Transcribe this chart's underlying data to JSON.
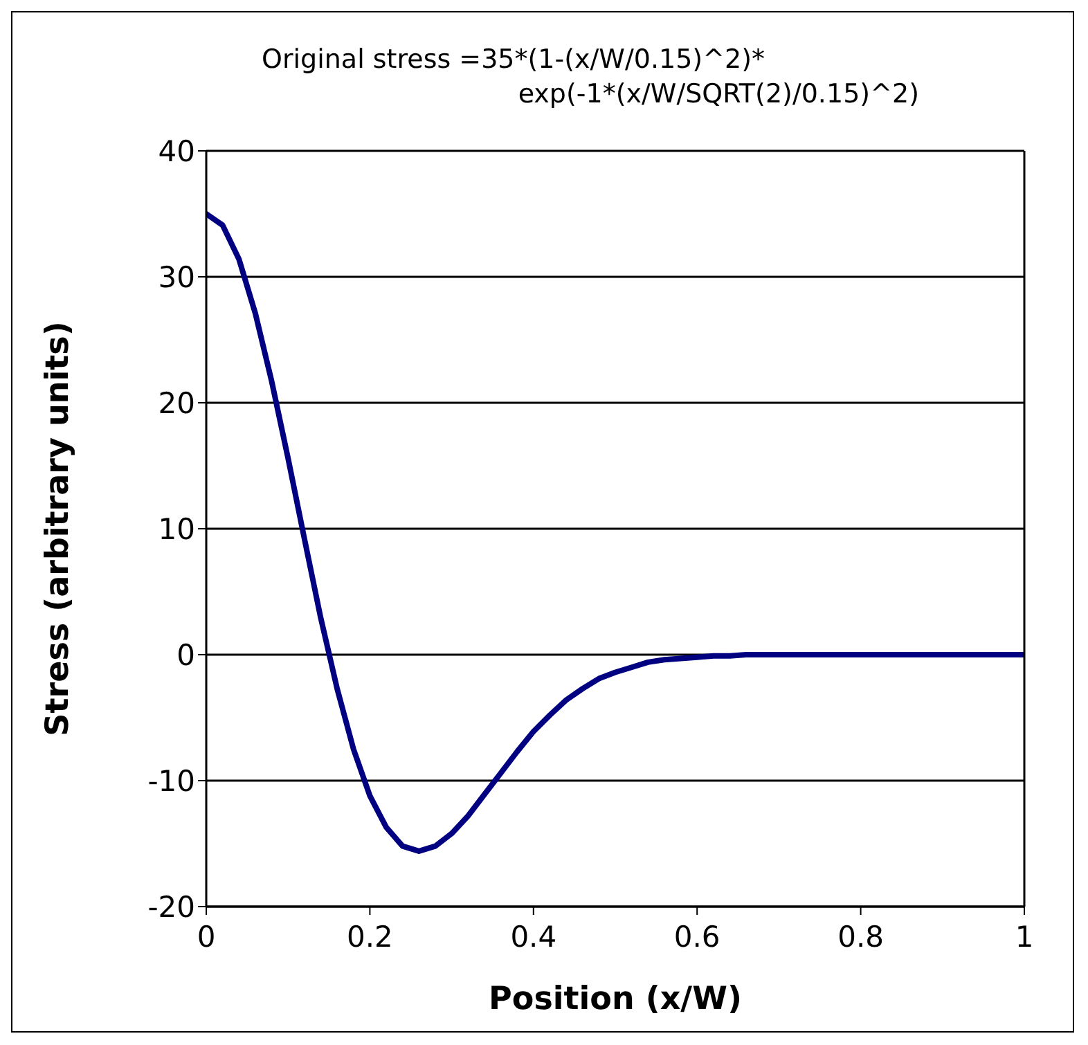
{
  "chart_data": {
    "type": "line",
    "title": "Original stress =35*(1-(x/W/0.15)^2)*\nexp(-1*(x/W/SQRT(2)/0.15)^2)",
    "xlabel": "Position (x/W)",
    "ylabel": "Stress (arbitrary units)",
    "x": [
      0,
      0.02,
      0.04,
      0.06,
      0.08,
      0.1,
      0.12,
      0.14,
      0.16,
      0.18,
      0.2,
      0.22,
      0.24,
      0.26,
      0.28,
      0.3,
      0.32,
      0.34,
      0.36,
      0.38,
      0.4,
      0.42,
      0.44,
      0.46,
      0.48,
      0.5,
      0.52,
      0.54,
      0.56,
      0.58,
      0.6,
      0.62,
      0.64,
      0.66,
      0.68,
      0.7,
      0.72,
      0.74,
      0.76,
      0.78,
      0.8,
      0.82,
      0.84,
      0.86,
      0.88,
      0.9,
      0.92,
      0.94,
      0.96,
      0.98,
      1
    ],
    "series": [
      {
        "color": "#000080",
        "values": [
          35,
          34.1,
          31.4,
          27.1,
          21.7,
          15.6,
          9.2,
          2.9,
          -2.7,
          -7.5,
          -11.2,
          -13.7,
          -15.2,
          -15.6,
          -15.2,
          -14.2,
          -12.8,
          -11.1,
          -9.4,
          -7.7,
          -6.1,
          -4.8,
          -3.6,
          -2.7,
          -1.9,
          -1.4,
          -1,
          -0.6,
          -0.4,
          -0.3,
          -0.2,
          -0.1,
          -0.1,
          0,
          0,
          0,
          0,
          0,
          0,
          0,
          0,
          0,
          0,
          0,
          0,
          0,
          0,
          0,
          0,
          0,
          0
        ]
      }
    ],
    "xlim": [
      0,
      1
    ],
    "xticks": [
      0,
      0.2,
      0.4,
      0.6,
      0.8,
      1
    ],
    "ylim": [
      -20,
      40
    ],
    "yticks": [
      -20,
      -10,
      0,
      10,
      20,
      30,
      40
    ],
    "grid": "y",
    "marker": "none",
    "line_style": "solid"
  }
}
